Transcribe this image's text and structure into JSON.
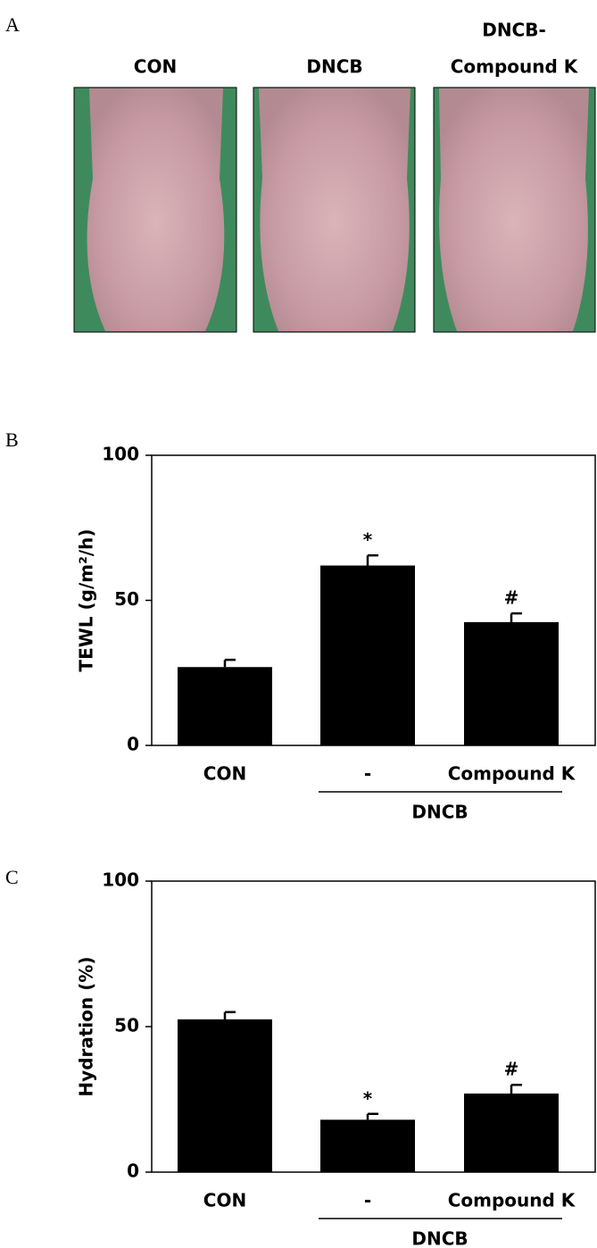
{
  "panel_a": {
    "label": "A",
    "titles": [
      [
        "CON"
      ],
      [
        "DNCB"
      ],
      [
        "DNCB-",
        "Compound K"
      ]
    ]
  },
  "chart_data": [
    {
      "type": "bar",
      "panel_label": "B",
      "y_label": "TEWL (g/m²/h)",
      "categories": [
        "CON",
        "-",
        "Compound K"
      ],
      "group_label": "DNCB",
      "values": [
        27,
        62,
        42.5
      ],
      "errors": [
        2.5,
        3.5,
        3
      ],
      "annotations": [
        null,
        "*",
        "#"
      ],
      "color": "#000000",
      "ylim": [
        0,
        100
      ],
      "yticks": [
        0,
        50,
        100
      ]
    },
    {
      "type": "bar",
      "panel_label": "C",
      "y_label": "Hydration (%)",
      "categories": [
        "CON",
        "-",
        "Compound K"
      ],
      "group_label": "DNCB",
      "values": [
        52.5,
        18,
        27
      ],
      "errors": [
        2.5,
        2,
        3
      ],
      "annotations": [
        null,
        "*",
        "#"
      ],
      "color": "#000000",
      "ylim": [
        0,
        100
      ],
      "yticks": [
        0,
        50,
        100
      ]
    }
  ]
}
